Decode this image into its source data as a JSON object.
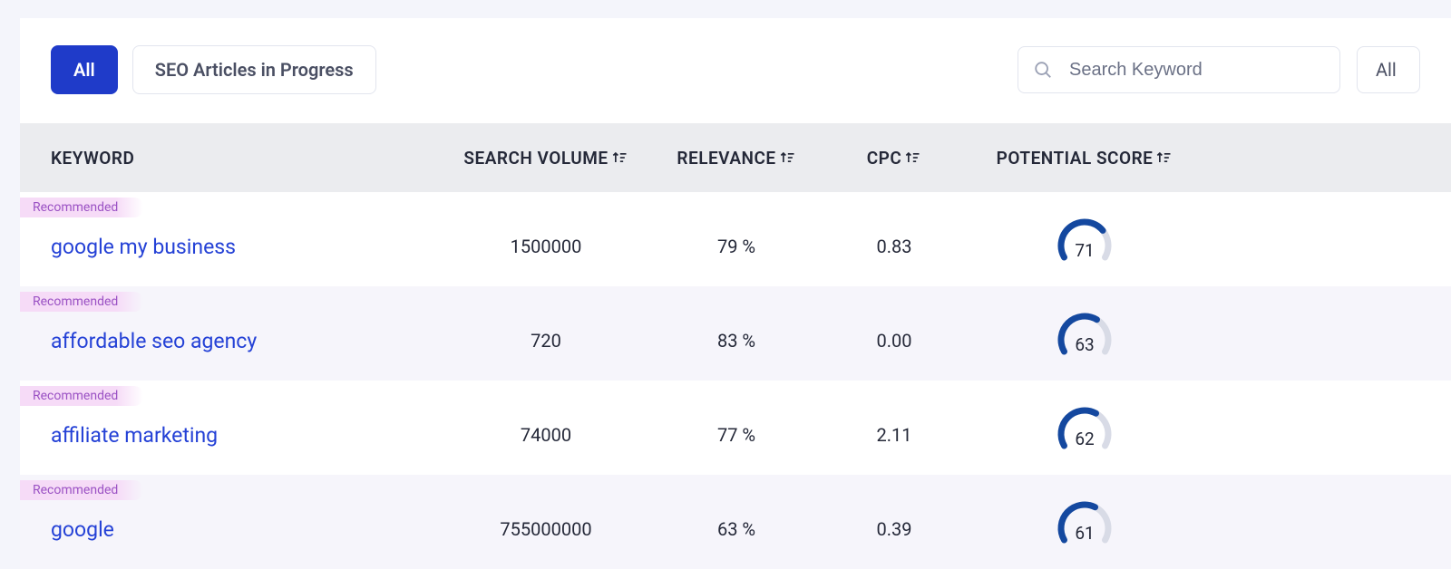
{
  "toolbar": {
    "tab_all": "All",
    "tab_progress": "SEO Articles in Progress",
    "search_placeholder": "Search Keyword",
    "filter_selected": "All"
  },
  "columns": {
    "keyword": "KEYWORD",
    "volume": "SEARCH VOLUME",
    "relevance": "RELEVANCE",
    "cpc": "CPC",
    "score": "POTENTIAL SCORE"
  },
  "gauge": {
    "start_angle_deg": -210,
    "sweep_deg": 240,
    "bg_color": "#d8dbe6",
    "fg_color": "#14489f"
  },
  "rows": [
    {
      "badge": "Recommended",
      "keyword": "google my business",
      "volume": "1500000",
      "relevance": "79 %",
      "cpc": "0.83",
      "score": 71
    },
    {
      "badge": "Recommended",
      "keyword": "affordable seo agency",
      "volume": "720",
      "relevance": "83 %",
      "cpc": "0.00",
      "score": 63
    },
    {
      "badge": "Recommended",
      "keyword": "affiliate marketing",
      "volume": "74000",
      "relevance": "77 %",
      "cpc": "2.11",
      "score": 62
    },
    {
      "badge": "Recommended",
      "keyword": "google",
      "volume": "755000000",
      "relevance": "63 %",
      "cpc": "0.39",
      "score": 61
    }
  ]
}
